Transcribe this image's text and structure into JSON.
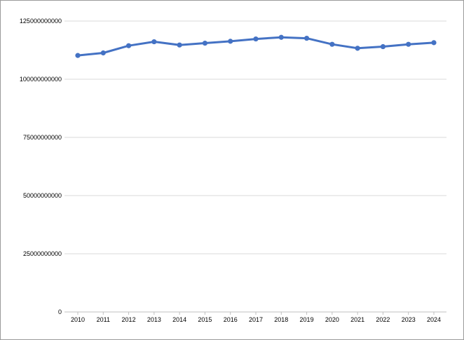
{
  "chart_data": {
    "type": "line",
    "title": "",
    "xlabel": "",
    "ylabel": "",
    "x": [
      "2010",
      "2011",
      "2012",
      "2013",
      "2014",
      "2015",
      "2016",
      "2017",
      "2018",
      "2019",
      "2020",
      "2021",
      "2022",
      "2023",
      "2024"
    ],
    "series": [
      {
        "values": [
          110200000000,
          111300000000,
          114400000000,
          116100000000,
          114700000000,
          115500000000,
          116300000000,
          117300000000,
          118000000000,
          117600000000,
          115000000000,
          113300000000,
          114000000000,
          115000000000,
          115700000000
        ]
      }
    ],
    "ylim": [
      0,
      125000000000
    ],
    "yticks": [
      "0",
      "25000000000",
      "50000000000",
      "75000000000",
      "100000000000",
      "125000000000"
    ],
    "grid": true,
    "legend": "none",
    "colors": {
      "line": "#4472c4",
      "grid": "#d9d9d9",
      "axis": "#bfbfbf"
    }
  }
}
